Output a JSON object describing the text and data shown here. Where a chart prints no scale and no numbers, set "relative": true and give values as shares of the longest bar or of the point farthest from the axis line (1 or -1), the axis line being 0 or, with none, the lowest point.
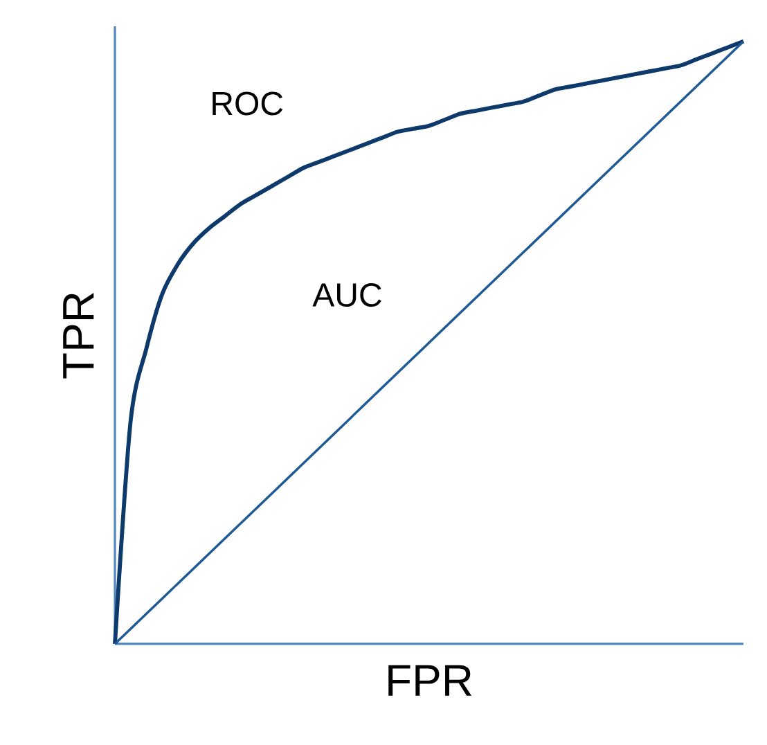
{
  "chart_data": {
    "type": "line",
    "relative": true,
    "xlabel": "FPR",
    "ylabel": "TPR",
    "annotations": [
      "ROC",
      "AUC"
    ],
    "categories": [
      null,
      null,
      null,
      null,
      null,
      null,
      null,
      null,
      null,
      null,
      null,
      null,
      null,
      null,
      null,
      null,
      null,
      null,
      null,
      null,
      null,
      null,
      null,
      null,
      null,
      null,
      null,
      null,
      null,
      null,
      null,
      null,
      null,
      null,
      null,
      null,
      null,
      null,
      null,
      null,
      null
    ],
    "series": [
      {
        "color": "#0d3a6b",
        "values": [
          0,
          0.37,
          0.49,
          0.58,
          0.63,
          0.665,
          0.69,
          0.71,
          0.73,
          0.745,
          0.76,
          0.775,
          0.79,
          0.8,
          0.81,
          0.82,
          0.83,
          0.84,
          0.85,
          0.855,
          0.86,
          0.87,
          0.88,
          0.885,
          0.89,
          0.895,
          0.9,
          0.91,
          0.92,
          0.925,
          0.93,
          0.935,
          0.94,
          0.945,
          0.95,
          0.955,
          0.96,
          0.97,
          0.98,
          0.99,
          1
        ]
      },
      {
        "color": "#1f5a96",
        "values": [
          0,
          0.025,
          0.05,
          0.075,
          0.1,
          0.125,
          0.15,
          0.175,
          0.2,
          0.225,
          0.25,
          0.275,
          0.3,
          0.325,
          0.35,
          0.375,
          0.4,
          0.425,
          0.45,
          0.475,
          0.5,
          0.525,
          0.55,
          0.575,
          0.6,
          0.625,
          0.65,
          0.675,
          0.7,
          0.725,
          0.75,
          0.775,
          0.8,
          0.825,
          0.85,
          0.875,
          0.9,
          0.925,
          0.95,
          0.975,
          1
        ]
      }
    ],
    "marker": "none",
    "line_style": "solid"
  }
}
